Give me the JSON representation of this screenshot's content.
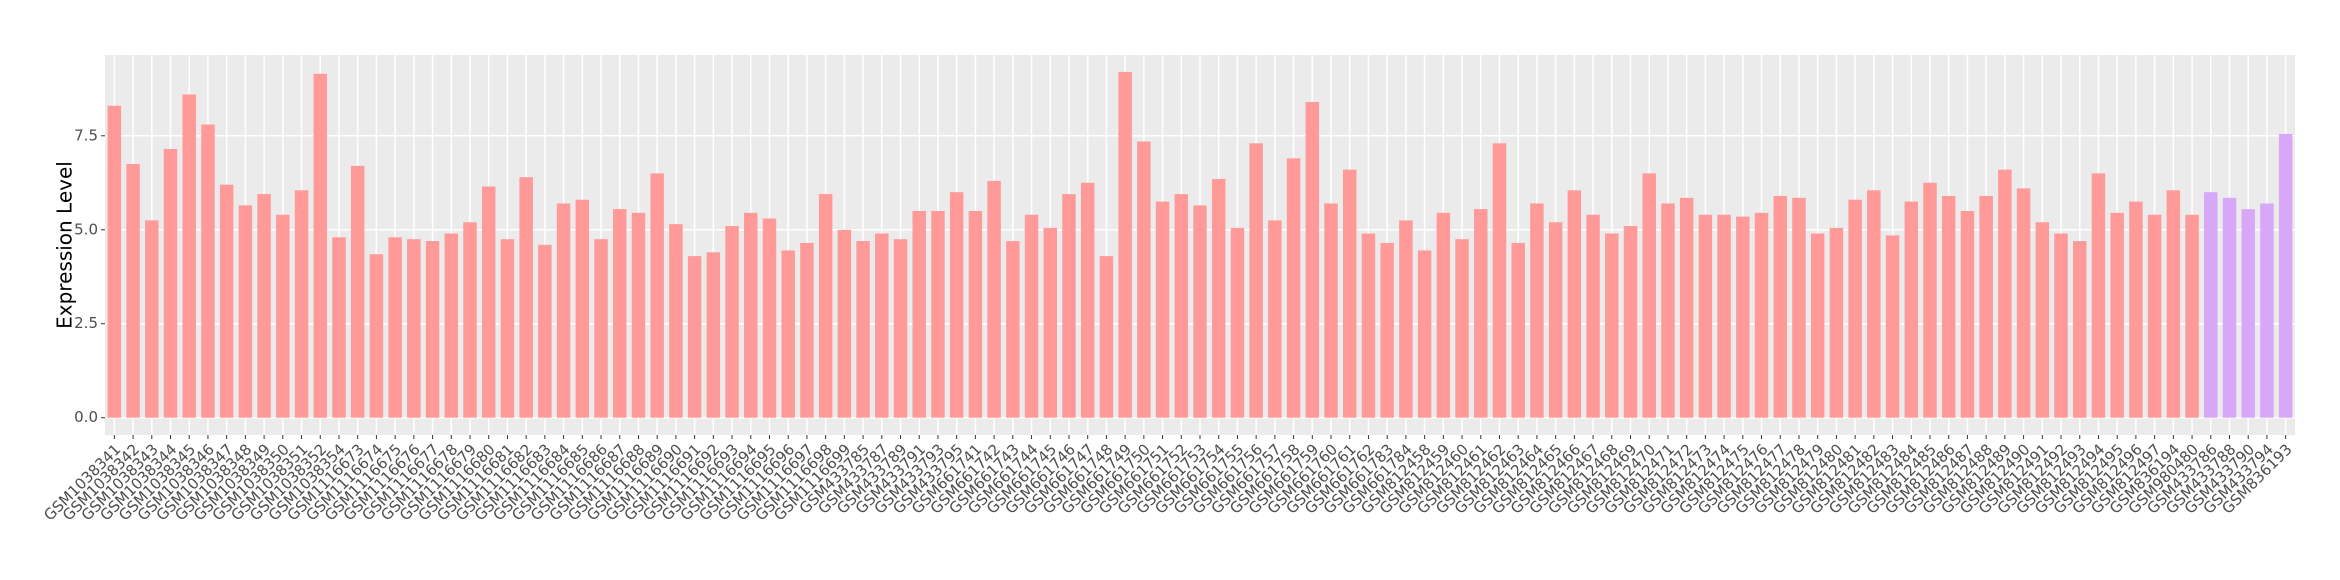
{
  "chart_data": {
    "type": "bar",
    "y_label": "Expression Level",
    "categories": [
      "GSM1038341",
      "GSM1038342",
      "GSM1038343",
      "GSM1038344",
      "GSM1038345",
      "GSM1038346",
      "GSM1038347",
      "GSM1038348",
      "GSM1038349",
      "GSM1038350",
      "GSM1038351",
      "GSM1038352",
      "GSM1038354",
      "GSM1116673",
      "GSM1116674",
      "GSM1116675",
      "GSM1116676",
      "GSM1116677",
      "GSM1116678",
      "GSM1116679",
      "GSM1116680",
      "GSM1116681",
      "GSM1116682",
      "GSM1116683",
      "GSM1116684",
      "GSM1116685",
      "GSM1116686",
      "GSM1116687",
      "GSM1116688",
      "GSM1116689",
      "GSM1116690",
      "GSM1116691",
      "GSM1116692",
      "GSM1116693",
      "GSM1116694",
      "GSM1116695",
      "GSM1116696",
      "GSM1116697",
      "GSM1116698",
      "GSM1116699",
      "GSM433785",
      "GSM433787",
      "GSM433789",
      "GSM433791",
      "GSM433793",
      "GSM433795",
      "GSM661741",
      "GSM661742",
      "GSM661743",
      "GSM661744",
      "GSM661745",
      "GSM661746",
      "GSM661747",
      "GSM661748",
      "GSM661749",
      "GSM661750",
      "GSM661751",
      "GSM661752",
      "GSM661753",
      "GSM661754",
      "GSM661755",
      "GSM661756",
      "GSM661757",
      "GSM661758",
      "GSM661759",
      "GSM661760",
      "GSM661761",
      "GSM661762",
      "GSM661783",
      "GSM661784",
      "GSM812458",
      "GSM812459",
      "GSM812460",
      "GSM812461",
      "GSM812462",
      "GSM812463",
      "GSM812464",
      "GSM812465",
      "GSM812466",
      "GSM812467",
      "GSM812468",
      "GSM812469",
      "GSM812470",
      "GSM812471",
      "GSM812472",
      "GSM812473",
      "GSM812474",
      "GSM812475",
      "GSM812476",
      "GSM812477",
      "GSM812478",
      "GSM812479",
      "GSM812480",
      "GSM812481",
      "GSM812482",
      "GSM812483",
      "GSM812484",
      "GSM812485",
      "GSM812486",
      "GSM812487",
      "GSM812488",
      "GSM812489",
      "GSM812490",
      "GSM812491",
      "GSM812492",
      "GSM812493",
      "GSM812494",
      "GSM812495",
      "GSM812496",
      "GSM812497",
      "GSM836194",
      "GSM980480",
      "GSM433786",
      "GSM433788",
      "GSM433790",
      "GSM433794",
      "GSM836193"
    ],
    "series": [
      {
        "color": "#ff9a98",
        "values": [
          8.3,
          6.75,
          5.25,
          7.15,
          8.6,
          7.8,
          6.2,
          5.65,
          5.95,
          5.4,
          6.05,
          9.15,
          4.8,
          6.7,
          4.35,
          4.8,
          4.75,
          4.7,
          4.9,
          5.2,
          6.15,
          4.75,
          6.4,
          4.6,
          5.7,
          5.8,
          4.75,
          5.55,
          5.45,
          6.5,
          5.15,
          4.3,
          4.4,
          5.1,
          5.45,
          5.3,
          4.45,
          4.65,
          5.95,
          5.0,
          4.7,
          4.9,
          4.75,
          5.5,
          5.5,
          6.0,
          5.5,
          6.3,
          4.7,
          5.4,
          5.05,
          5.95,
          6.25,
          4.3,
          9.2,
          7.35,
          5.75,
          5.95,
          5.65,
          6.35,
          5.05,
          7.3,
          5.25,
          6.9,
          8.4,
          5.7,
          6.6,
          4.9,
          4.65,
          5.25,
          4.45,
          5.45,
          4.75,
          5.55,
          7.3,
          4.65,
          5.7,
          5.2,
          6.05,
          5.4,
          4.9,
          5.1,
          6.5,
          5.7,
          5.85,
          5.4,
          5.4,
          5.35,
          5.45,
          5.9,
          5.85,
          4.9,
          5.05,
          5.8,
          6.05,
          4.85,
          5.75,
          6.25,
          5.9,
          5.5,
          5.9,
          6.6,
          6.1,
          5.2,
          4.9,
          4.7,
          6.5,
          5.45,
          5.75,
          5.4,
          6.05,
          5.4,
          null,
          null,
          null,
          null,
          null
        ]
      },
      {
        "color": "#d8a8f8",
        "values": [
          null,
          null,
          null,
          null,
          null,
          null,
          null,
          null,
          null,
          null,
          null,
          null,
          null,
          null,
          null,
          null,
          null,
          null,
          null,
          null,
          null,
          null,
          null,
          null,
          null,
          null,
          null,
          null,
          null,
          null,
          null,
          null,
          null,
          null,
          null,
          null,
          null,
          null,
          null,
          null,
          null,
          null,
          null,
          null,
          null,
          null,
          null,
          null,
          null,
          null,
          null,
          null,
          null,
          null,
          null,
          null,
          null,
          null,
          null,
          null,
          null,
          null,
          null,
          null,
          null,
          null,
          null,
          null,
          null,
          null,
          null,
          null,
          null,
          null,
          null,
          null,
          null,
          null,
          null,
          null,
          null,
          null,
          null,
          null,
          null,
          null,
          null,
          null,
          null,
          null,
          null,
          null,
          null,
          null,
          null,
          null,
          null,
          null,
          null,
          null,
          null,
          null,
          null,
          null,
          null,
          null,
          null,
          null,
          null,
          null,
          null,
          null,
          6.0,
          5.85,
          5.55,
          5.7,
          7.55
        ]
      }
    ],
    "ylim": [
      -0.46,
      9.65
    ],
    "yticks": [
      {
        "value": 0,
        "label": "0.0"
      },
      {
        "value": 2.5,
        "label": "2.5"
      },
      {
        "value": 5,
        "label": "5.0"
      },
      {
        "value": 7.5,
        "label": "7.5"
      }
    ],
    "grid": true
  }
}
